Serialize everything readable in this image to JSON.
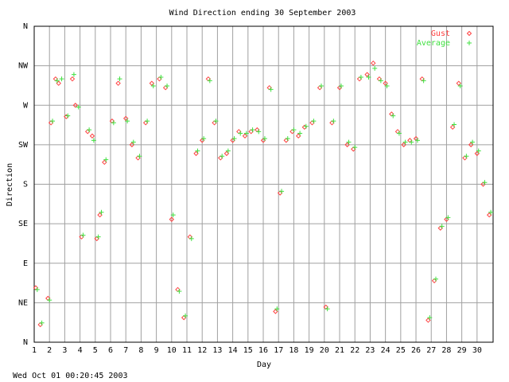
{
  "chart_data": {
    "type": "scatter",
    "title": "Wind Direction ending 30 September 2003",
    "xlabel": "Day",
    "ylabel": "Direction",
    "footer": "Wed Oct 01 00:20:45 2003",
    "xlim": [
      1,
      31.05
    ],
    "xticks": [
      1,
      2,
      3,
      4,
      5,
      6,
      7,
      8,
      9,
      10,
      11,
      12,
      13,
      14,
      15,
      16,
      17,
      18,
      19,
      20,
      21,
      22,
      23,
      24,
      25,
      26,
      27,
      28,
      29,
      30
    ],
    "ylim": [
      0,
      360
    ],
    "yticks": [
      {
        "value": 0,
        "label": "N"
      },
      {
        "value": 45,
        "label": "NE"
      },
      {
        "value": 90,
        "label": "E"
      },
      {
        "value": 135,
        "label": "SE"
      },
      {
        "value": 180,
        "label": "S"
      },
      {
        "value": 225,
        "label": "SW"
      },
      {
        "value": 270,
        "label": "W"
      },
      {
        "value": 315,
        "label": "NW"
      },
      {
        "value": 360,
        "label": "N"
      }
    ],
    "grid": true,
    "legend": "upper right",
    "series": [
      {
        "name": "Gust",
        "color": "#ff4040",
        "marker": "diamond",
        "x": [
          1.1,
          1.4,
          1.9,
          2.1,
          2.4,
          2.6,
          3.1,
          3.5,
          3.7,
          4.1,
          4.5,
          4.8,
          5.1,
          5.3,
          5.6,
          6.1,
          6.5,
          7.0,
          7.4,
          7.8,
          8.3,
          8.7,
          9.2,
          9.6,
          10.0,
          10.4,
          10.8,
          11.2,
          11.6,
          12.0,
          12.4,
          12.8,
          13.2,
          13.6,
          14.0,
          14.4,
          14.8,
          15.2,
          15.6,
          16.0,
          16.4,
          16.8,
          17.1,
          17.5,
          17.9,
          18.3,
          18.7,
          19.2,
          19.7,
          20.1,
          20.5,
          21.0,
          21.5,
          21.9,
          22.3,
          22.8,
          23.2,
          23.6,
          24.0,
          24.4,
          24.8,
          25.2,
          25.6,
          26.0,
          26.4,
          26.8,
          27.2,
          27.6,
          28.0,
          28.4,
          28.8,
          29.2,
          29.6,
          30.0,
          30.4,
          30.8
        ],
        "values": [
          62,
          20,
          50,
          250,
          300,
          295,
          257,
          300,
          270,
          120,
          240,
          235,
          118,
          145,
          205,
          252,
          295,
          255,
          225,
          210,
          250,
          295,
          300,
          290,
          140,
          60,
          28,
          120,
          215,
          230,
          300,
          250,
          210,
          215,
          230,
          240,
          235,
          240,
          242,
          230,
          290,
          35,
          170,
          230,
          240,
          235,
          245,
          250,
          290,
          40,
          250,
          290,
          225,
          220,
          300,
          305,
          318,
          300,
          295,
          260,
          240,
          225,
          230,
          232,
          300,
          25,
          70,
          130,
          140,
          245,
          295,
          210,
          225,
          215,
          180,
          145
        ]
      },
      {
        "name": "Average",
        "color": "#40e040",
        "marker": "plus",
        "x": [
          1.2,
          1.5,
          2.0,
          2.2,
          2.5,
          2.8,
          3.2,
          3.6,
          3.9,
          4.2,
          4.6,
          4.9,
          5.2,
          5.4,
          5.7,
          6.2,
          6.6,
          7.1,
          7.5,
          7.9,
          8.4,
          8.8,
          9.3,
          9.7,
          10.1,
          10.5,
          10.9,
          11.3,
          11.7,
          12.1,
          12.5,
          12.9,
          13.3,
          13.7,
          14.1,
          14.5,
          14.9,
          15.3,
          15.7,
          16.1,
          16.5,
          16.9,
          17.2,
          17.6,
          18.0,
          18.4,
          18.8,
          19.3,
          19.8,
          20.2,
          20.6,
          21.1,
          21.6,
          22.0,
          22.4,
          22.9,
          23.3,
          23.7,
          24.1,
          24.5,
          24.9,
          25.3,
          25.7,
          26.1,
          26.5,
          26.9,
          27.3,
          27.7,
          28.1,
          28.5,
          28.9,
          29.3,
          29.7,
          30.1,
          30.5,
          30.9
        ],
        "values": [
          60,
          22,
          48,
          252,
          298,
          300,
          258,
          305,
          268,
          122,
          242,
          230,
          120,
          148,
          208,
          250,
          300,
          252,
          228,
          212,
          252,
          292,
          302,
          292,
          145,
          58,
          30,
          118,
          218,
          232,
          298,
          252,
          212,
          218,
          232,
          238,
          238,
          242,
          240,
          232,
          288,
          38,
          172,
          232,
          242,
          238,
          246,
          252,
          292,
          38,
          252,
          292,
          228,
          222,
          302,
          302,
          312,
          298,
          292,
          258,
          238,
          228,
          228,
          230,
          298,
          28,
          72,
          132,
          142,
          248,
          292,
          212,
          228,
          218,
          182,
          148
        ]
      }
    ]
  }
}
